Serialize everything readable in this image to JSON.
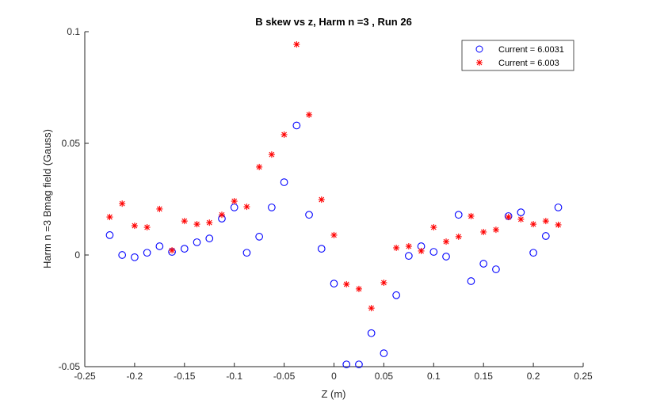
{
  "chart_data": {
    "type": "scatter",
    "title": "B skew vs z, Harm n =3 , Run 26",
    "xlabel": "Z (m)",
    "ylabel": "Harm n =3 Bmag field (Gauss)",
    "xlim": [
      -0.25,
      0.25
    ],
    "ylim": [
      -0.05,
      0.1
    ],
    "xticks": [
      "-0.25",
      "-0.2",
      "-0.15",
      "-0.1",
      "-0.05",
      "0",
      "0.05",
      "0.1",
      "0.15",
      "0.2",
      "0.25"
    ],
    "yticks": [
      "-0.05",
      "0",
      "0.05",
      "0.1"
    ],
    "grid": false,
    "legend_position": "top-right",
    "x": [
      -0.225,
      -0.2125,
      -0.2,
      -0.1875,
      -0.175,
      -0.1625,
      -0.15,
      -0.1375,
      -0.125,
      -0.1125,
      -0.1,
      -0.0875,
      -0.075,
      -0.0625,
      -0.05,
      -0.0375,
      -0.025,
      -0.0125,
      0,
      0.0125,
      0.025,
      0.0375,
      0.05,
      0.0625,
      0.075,
      0.0875,
      0.1,
      0.1125,
      0.125,
      0.1375,
      0.15,
      0.1625,
      0.175,
      0.1875,
      0.2,
      0.2125,
      0.225
    ],
    "series": [
      {
        "name": "Current = 6.0031",
        "marker": "circle",
        "color": "#0000ff",
        "values": [
          0.0089,
          0.0,
          -0.001,
          0.001,
          0.0039,
          0.0014,
          0.0028,
          0.0057,
          0.0074,
          0.0163,
          0.0213,
          0.001,
          0.0082,
          0.0213,
          0.0326,
          0.058,
          0.018,
          0.0028,
          -0.0128,
          -0.049,
          -0.049,
          -0.035,
          -0.044,
          -0.018,
          -0.0004,
          0.0039,
          0.0014,
          -0.0007,
          0.018,
          -0.0117,
          -0.0039,
          -0.0064,
          0.0174,
          0.0191,
          0.001,
          0.0085,
          0.0213
        ]
      },
      {
        "name": "Current = 6.003",
        "marker": "asterisk",
        "color": "#ff0000",
        "values": [
          0.017,
          0.023,
          0.0131,
          0.0124,
          0.0206,
          0.0021,
          0.0152,
          0.0138,
          0.0145,
          0.018,
          0.0241,
          0.0216,
          0.0394,
          0.045,
          0.0539,
          0.0943,
          0.0628,
          0.0248,
          0.0089,
          -0.0131,
          -0.0152,
          -0.0238,
          -0.0124,
          0.0032,
          0.0039,
          0.0018,
          0.0124,
          0.006,
          0.0082,
          0.0174,
          0.0103,
          0.0113,
          0.017,
          0.016,
          0.0138,
          0.0152,
          0.0135
        ]
      }
    ]
  }
}
